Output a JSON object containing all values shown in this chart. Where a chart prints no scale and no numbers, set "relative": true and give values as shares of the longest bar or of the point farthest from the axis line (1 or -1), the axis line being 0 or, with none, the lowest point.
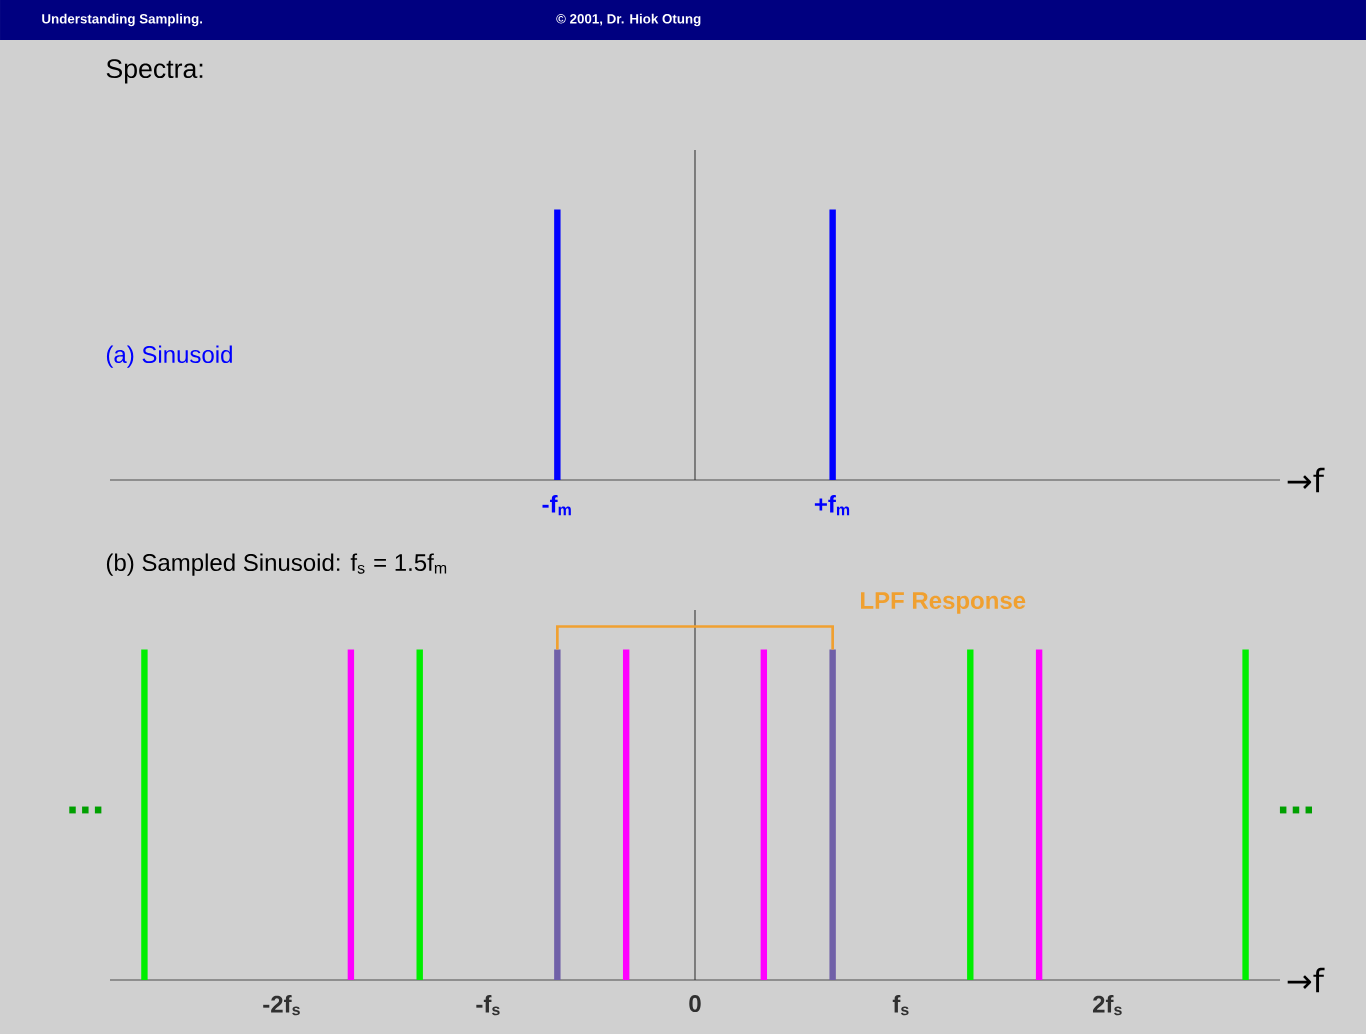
{
  "chart_data": [
    {
      "type": "bar",
      "relative": true,
      "title": "Spectra:",
      "xlabel": "→f",
      "annotations": [
        "Understanding Sampling.",
        "© 2001, Dr. Hiok Otung",
        "(a) Sinusoid"
      ],
      "categories": [
        null,
        null,
        null,
        null,
        null,
        null,
        "-f$_{m}$",
        null,
        null,
        null,
        "+f$_{m}$",
        null,
        null,
        null,
        null,
        null,
        null
      ],
      "values": [
        null,
        null,
        null,
        null,
        null,
        null,
        1,
        null,
        null,
        null,
        1,
        null,
        null,
        null,
        null,
        null,
        null
      ],
      "color": "#0000ff"
    },
    {
      "type": "bar",
      "relative": true,
      "title": "(b) Sampled Sinusoid: f$_{s}$ = 1.5f$_{m}$",
      "xlabel": "→f",
      "annotations": [
        "...",
        "...",
        "LPF Response"
      ],
      "categories": [
        null,
        null,
        "-2f$_{s}$",
        null,
        null,
        "-f$_{s}$",
        null,
        null,
        "0",
        null,
        null,
        "f$_{s}$",
        null,
        null,
        "2f$_{s}$",
        null,
        null
      ],
      "series": [
        {
          "color": "#00ee00",
          "values": [
            1,
            null,
            null,
            null,
            1,
            null,
            null,
            null,
            null,
            null,
            null,
            null,
            1,
            null,
            null,
            null,
            1
          ]
        },
        {
          "color": "#ff00ff",
          "values": [
            null,
            null,
            null,
            1,
            null,
            null,
            null,
            1,
            null,
            1,
            null,
            null,
            null,
            1,
            null,
            null,
            null
          ]
        },
        {
          "color": "#7060a8",
          "values": [
            null,
            null,
            null,
            null,
            null,
            null,
            1,
            null,
            null,
            null,
            1,
            null,
            null,
            null,
            null,
            null,
            null
          ]
        }
      ]
    }
  ]
}
